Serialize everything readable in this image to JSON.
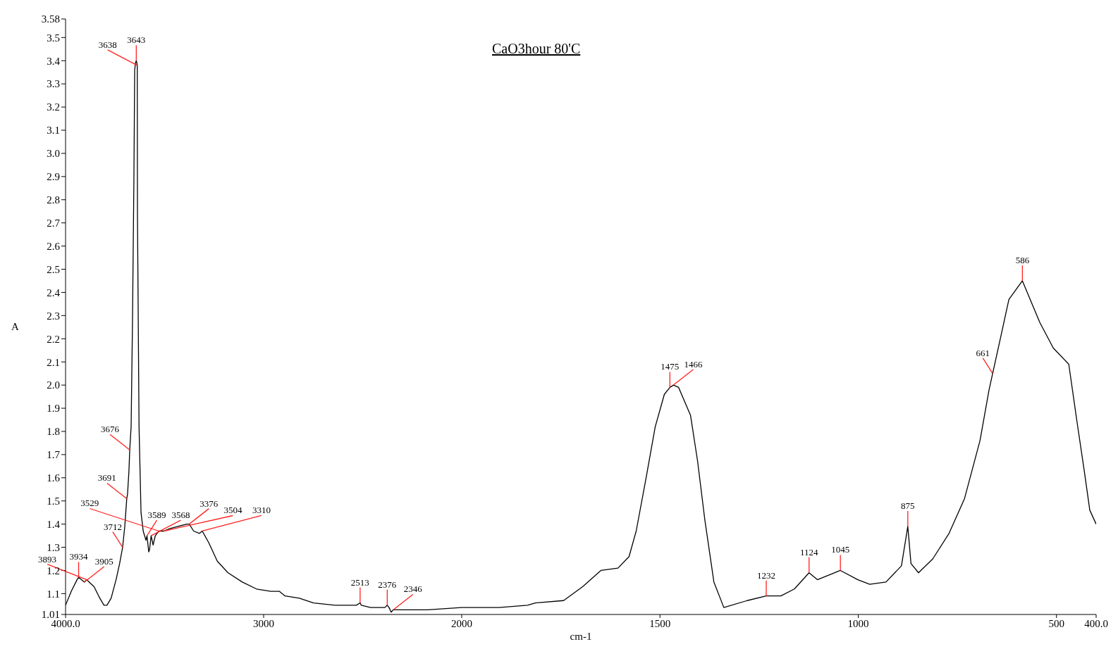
{
  "chart_data": [
    {
      "type": "line",
      "ylabel": "A",
      "x": [
        4000,
        3971,
        3942,
        3934,
        3905,
        3893,
        3881,
        3856,
        3827,
        3806,
        3791,
        3770,
        3745,
        3727,
        3712,
        3701,
        3691,
        3687,
        3680,
        3676,
        3669,
        3662,
        3655,
        3651,
        3647,
        3643,
        3640,
        3638,
        3637,
        3629,
        3619,
        3608,
        3594,
        3589,
        3580,
        3576,
        3568,
        3558,
        3547,
        3529,
        3518,
        3504,
        3475,
        3432,
        3388,
        3376,
        3353,
        3324,
        3310,
        3277,
        3234,
        3180,
        3108,
        3036,
        2964,
        2921,
        2892,
        2820,
        2748,
        2640,
        2532,
        2513,
        2507,
        2460,
        2388,
        2376,
        2367,
        2356,
        2346,
        2317,
        2173,
        2000
      ],
      "series": [
        {
          "color": "#000000",
          "values": [
            1.05,
            1.11,
            1.16,
            1.17,
            1.15,
            1.16,
            1.15,
            1.13,
            1.08,
            1.05,
            1.05,
            1.08,
            1.16,
            1.23,
            1.3,
            1.39,
            1.51,
            1.53,
            1.63,
            1.72,
            1.82,
            2.28,
            2.89,
            3.36,
            3.39,
            3.4,
            3.39,
            3.38,
            2.74,
            1.82,
            1.45,
            1.37,
            1.33,
            1.35,
            1.28,
            1.29,
            1.35,
            1.31,
            1.35,
            1.37,
            1.37,
            1.37,
            1.38,
            1.39,
            1.4,
            1.4,
            1.37,
            1.36,
            1.37,
            1.32,
            1.24,
            1.19,
            1.15,
            1.12,
            1.11,
            1.11,
            1.09,
            1.08,
            1.06,
            1.05,
            1.05,
            1.06,
            1.05,
            1.04,
            1.04,
            1.05,
            1.04,
            1.02,
            1.03,
            1.03,
            1.03,
            1.04
          ]
        }
      ],
      "xlim": [
        4000,
        2000
      ],
      "xticks": [
        {
          "value": 4000,
          "label": "4000.0"
        },
        3000,
        2000
      ],
      "ylim": [
        1.01,
        3.58
      ],
      "yticks": [
        1.01,
        {
          "value": 1.1,
          "label": "1.1"
        },
        1.2,
        1.3,
        1.4,
        1.5,
        1.6,
        1.7,
        1.8,
        1.9,
        {
          "value": 2.0,
          "label": "2.0"
        },
        2.1,
        2.2,
        2.3,
        2.4,
        2.5,
        2.6,
        2.7,
        2.8,
        2.9,
        {
          "value": 3.0,
          "label": "3.0"
        },
        3.1,
        3.2,
        3.3,
        3.4,
        3.5,
        3.58
      ],
      "grid": false,
      "legend": false,
      "marker": "none",
      "line_style": "solid",
      "annotations": [
        {
          "text": "3934",
          "x": 3934,
          "y": 1.17
        },
        {
          "text": "3905",
          "x": 3905,
          "y": 1.15
        },
        {
          "text": "3893",
          "x": 3893,
          "y": 1.16
        },
        {
          "text": "3712",
          "x": 3712,
          "y": 1.3
        },
        {
          "text": "3691",
          "x": 3691,
          "y": 1.51
        },
        {
          "text": "3676",
          "x": 3676,
          "y": 1.72
        },
        {
          "text": "3643",
          "x": 3643,
          "y": 3.4
        },
        {
          "text": "3638",
          "x": 3638,
          "y": 3.38
        },
        {
          "text": "3589",
          "x": 3589,
          "y": 1.35
        },
        {
          "text": "3568",
          "x": 3568,
          "y": 1.35
        },
        {
          "text": "3529",
          "x": 3529,
          "y": 1.37
        },
        {
          "text": "3504",
          "x": 3504,
          "y": 1.37
        },
        {
          "text": "3376",
          "x": 3376,
          "y": 1.4
        },
        {
          "text": "3310",
          "x": 3310,
          "y": 1.37
        },
        {
          "text": "2513",
          "x": 2513,
          "y": 1.06
        },
        {
          "text": "2376",
          "x": 2376,
          "y": 1.05
        },
        {
          "text": "2346",
          "x": 2346,
          "y": 1.03
        }
      ]
    },
    {
      "type": "line",
      "title": "CaO3hour 80'C",
      "xlabel": "cm-1",
      "x": [
        2000,
        1906,
        1834,
        1814,
        1743,
        1695,
        1649,
        1606,
        1578,
        1560,
        1535,
        1512,
        1489,
        1475,
        1466,
        1453,
        1423,
        1405,
        1387,
        1364,
        1339,
        1280,
        1232,
        1195,
        1161,
        1124,
        1103,
        1045,
        1001,
        971,
        930,
        891,
        875,
        867,
        848,
        812,
        771,
        732,
        693,
        670,
        661,
        643,
        620,
        586,
        542,
        508,
        469,
        449,
        430,
        416,
        400
      ],
      "series": [
        {
          "color": "#000000",
          "values": [
            1.04,
            1.04,
            1.05,
            1.06,
            1.07,
            1.13,
            1.2,
            1.21,
            1.26,
            1.37,
            1.6,
            1.82,
            1.96,
            1.99,
            2.0,
            1.99,
            1.87,
            1.67,
            1.42,
            1.15,
            1.04,
            1.07,
            1.09,
            1.09,
            1.12,
            1.19,
            1.16,
            1.2,
            1.16,
            1.14,
            1.15,
            1.22,
            1.39,
            1.23,
            1.19,
            1.25,
            1.36,
            1.51,
            1.76,
            1.98,
            2.05,
            2.19,
            2.37,
            2.45,
            2.27,
            2.16,
            2.09,
            1.85,
            1.63,
            1.46,
            1.4
          ]
        }
      ],
      "xlim": [
        2000,
        400
      ],
      "xticks": [
        1500,
        1000,
        500,
        {
          "value": 400,
          "label": "400.0"
        }
      ],
      "ylim": [
        1.01,
        3.58
      ],
      "tick_labels": "x",
      "grid": false,
      "legend": false,
      "marker": "none",
      "line_style": "solid",
      "annotations": [
        {
          "text": "1475",
          "x": 1475,
          "y": 1.99
        },
        {
          "text": "1466",
          "x": 1466,
          "y": 2.0
        },
        {
          "text": "1232",
          "x": 1232,
          "y": 1.09
        },
        {
          "text": "1124",
          "x": 1124,
          "y": 1.19
        },
        {
          "text": "1045",
          "x": 1045,
          "y": 1.2
        },
        {
          "text": "875",
          "x": 875,
          "y": 1.39
        },
        {
          "text": "661",
          "x": 661,
          "y": 2.05
        },
        {
          "text": "586",
          "x": 586,
          "y": 2.45
        }
      ]
    }
  ]
}
